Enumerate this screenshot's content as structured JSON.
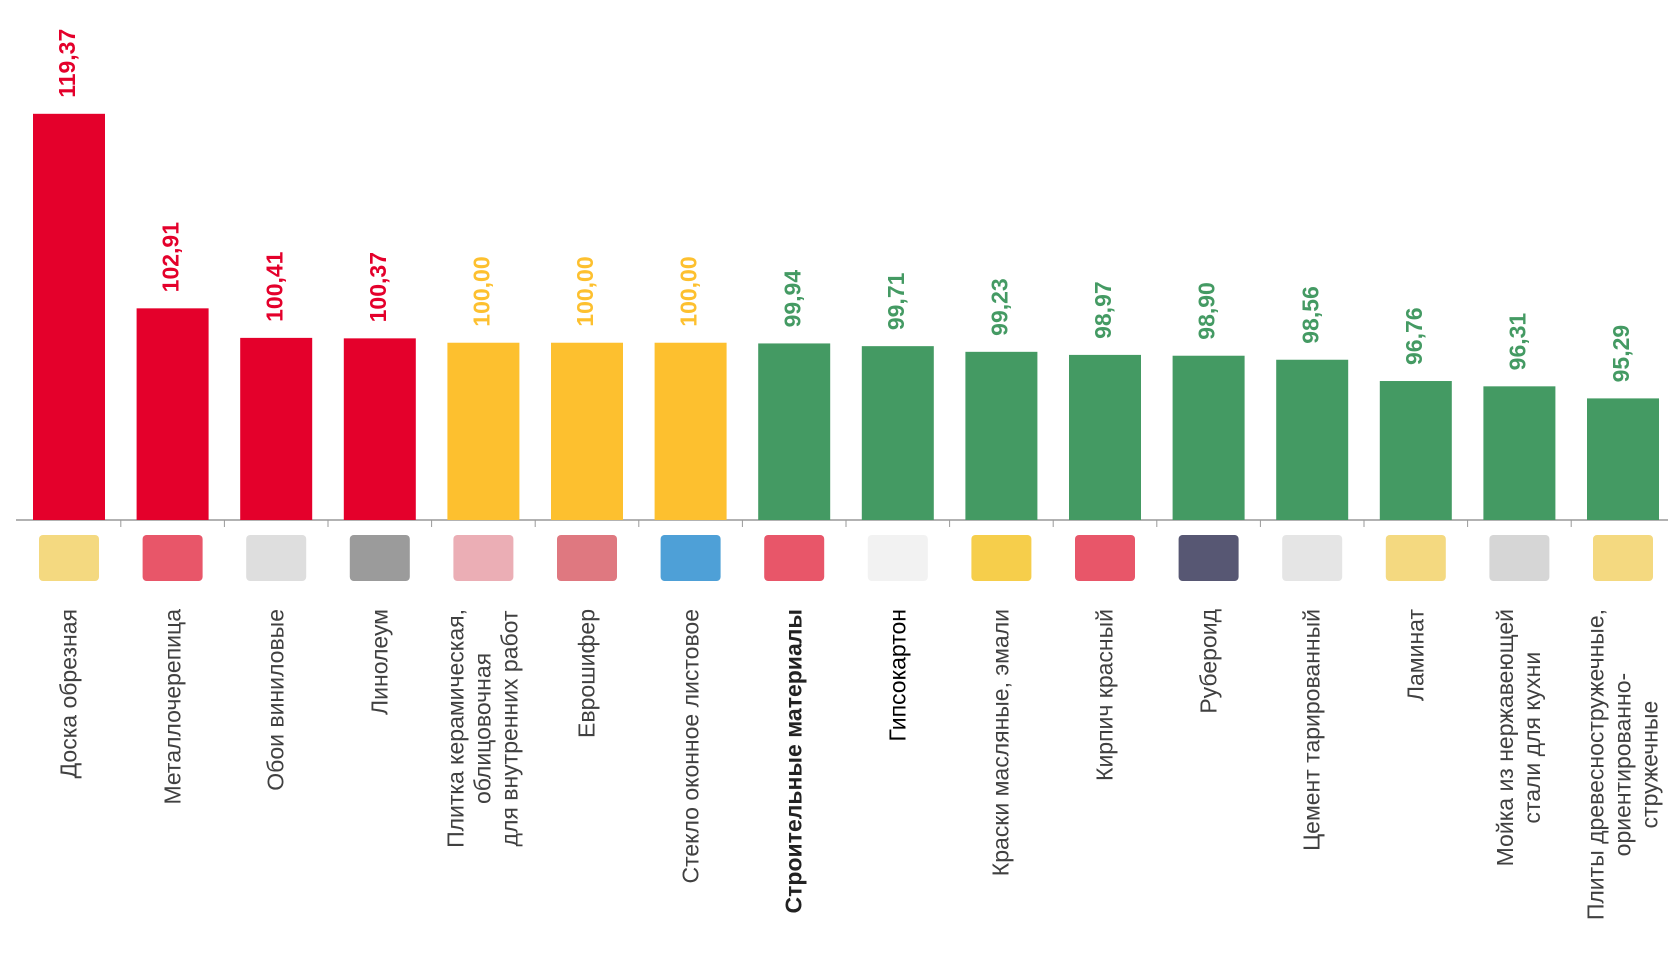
{
  "chart_data": {
    "type": "bar",
    "categories": [
      "Доска обрезная",
      "Металлочерепица",
      "Обои виниловые",
      "Линолеум",
      "Плитка керамическая,\nоблицовочная\nдля внутренних работ",
      "Еврошифер",
      "Стекло оконное листовое",
      "Строительные материалы",
      "Гипсокартон",
      "Краски масляные, эмали",
      "Кирпич красный",
      "Рубероид",
      "Цемент тарированный",
      "Ламинат",
      "Мойка из нержавеющей\nстали для кухни",
      "Плиты древесностружечные,\nориентированно-\nстружечные"
    ],
    "values": [
      119.37,
      102.91,
      100.41,
      100.37,
      100.0,
      100.0,
      100.0,
      99.94,
      99.71,
      99.23,
      98.97,
      98.9,
      98.56,
      96.76,
      96.31,
      95.29
    ],
    "value_labels": [
      "119,37",
      "102,91",
      "100,41",
      "100,37",
      "100,00",
      "100,00",
      "100,00",
      "99,94",
      "99,71",
      "99,23",
      "98,97",
      "98,90",
      "98,56",
      "96,76",
      "96,31",
      "95,29"
    ],
    "colors": [
      "#e4002b",
      "#e4002b",
      "#e4002b",
      "#e4002b",
      "#fdc02f",
      "#fdc02f",
      "#fdc02f",
      "#449a63",
      "#449a63",
      "#449a63",
      "#449a63",
      "#449a63",
      "#449a63",
      "#449a63",
      "#449a63",
      "#449a63"
    ],
    "ylim": [
      85,
      129
    ]
  }
}
